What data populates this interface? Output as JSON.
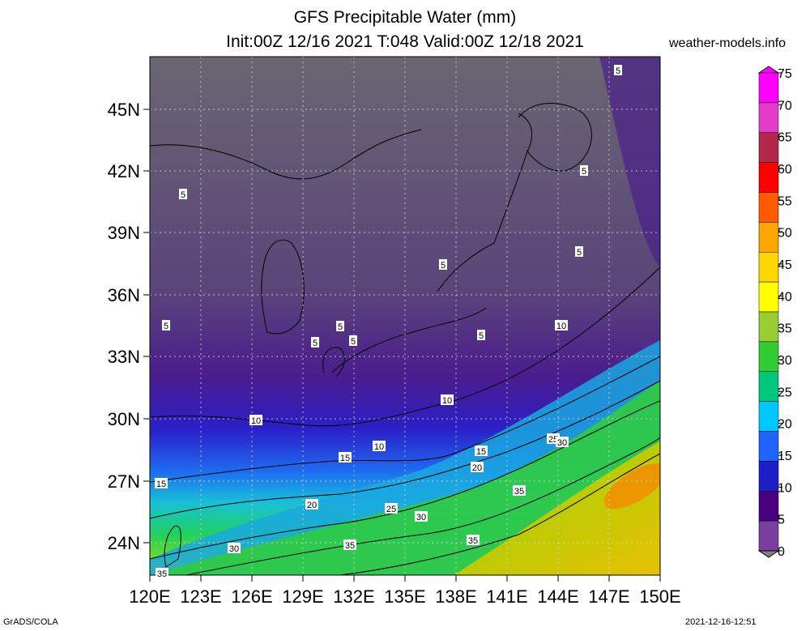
{
  "header": {
    "title_line1": "GFS Precipitable Water (mm)",
    "title_line2": "Init:00Z 12/16 2021 T:048 Valid:00Z 12/18 2021",
    "site": "weather-models.info"
  },
  "footer": {
    "left": "GrADS/COLA",
    "right": "2021-12-16-12:51"
  },
  "map": {
    "lat_labels": [
      "45N",
      "42N",
      "39N",
      "36N",
      "33N",
      "30N",
      "27N",
      "24N"
    ],
    "lon_labels": [
      "120E",
      "123E",
      "126E",
      "129E",
      "132E",
      "135E",
      "138E",
      "141E",
      "144E",
      "147E",
      "150E"
    ],
    "contour_labels": [
      "5",
      "5",
      "5",
      "5",
      "5",
      "5",
      "5",
      "5",
      "5",
      "5",
      "10",
      "10",
      "10",
      "10",
      "15",
      "15",
      "15",
      "20",
      "20",
      "25",
      "25",
      "30",
      "30",
      "30",
      "35",
      "35",
      "35",
      "35"
    ]
  },
  "colorbar": {
    "labels": [
      "75",
      "70",
      "65",
      "60",
      "55",
      "50",
      "45",
      "40",
      "35",
      "30",
      "25",
      "20",
      "15",
      "10",
      "5",
      "0"
    ],
    "colors": [
      "#ff00ff",
      "#e43cc8",
      "#b4284b",
      "#ff0000",
      "#ff5a00",
      "#ffa500",
      "#ffd700",
      "#ffff00",
      "#9acd32",
      "#32cd32",
      "#00c87a",
      "#00c8ff",
      "#1e64ff",
      "#1e1ec8",
      "#4b0082",
      "#7b3fa0",
      "#808080"
    ]
  }
}
